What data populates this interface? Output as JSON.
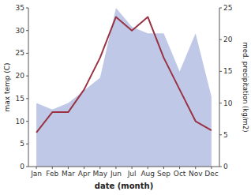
{
  "chart_data": {
    "type": "line",
    "xlabel": "date (month)",
    "ylabel": "max temp (C)",
    "y2label": "med. precipitation (kg/m2)",
    "categories": [
      "Jan",
      "Feb",
      "Mar",
      "Apr",
      "May",
      "Jun",
      "Jul",
      "Aug",
      "Sep",
      "Oct",
      "Nov",
      "Dec"
    ],
    "series": [
      {
        "type": "area",
        "axis": "y2",
        "color": "#c0c8e8",
        "values": [
          10.0,
          9.0,
          10.0,
          12.0,
          14.0,
          25.0,
          22.0,
          21.0,
          21.0,
          15.0,
          21.0,
          11.0
        ]
      },
      {
        "type": "line",
        "color": "#993344",
        "values": [
          7.5,
          12.0,
          12.0,
          17.0,
          24.0,
          33.0,
          30.0,
          33.0,
          24.0,
          17.0,
          10.0,
          8.0
        ]
      }
    ],
    "ylim": [
      0,
      35
    ],
    "yticks": [
      0,
      5,
      10,
      15,
      20,
      25,
      30,
      35
    ],
    "y2lim": [
      0,
      25
    ],
    "y2ticks": [
      0,
      5,
      10,
      15,
      20,
      25
    ],
    "grid": false
  }
}
